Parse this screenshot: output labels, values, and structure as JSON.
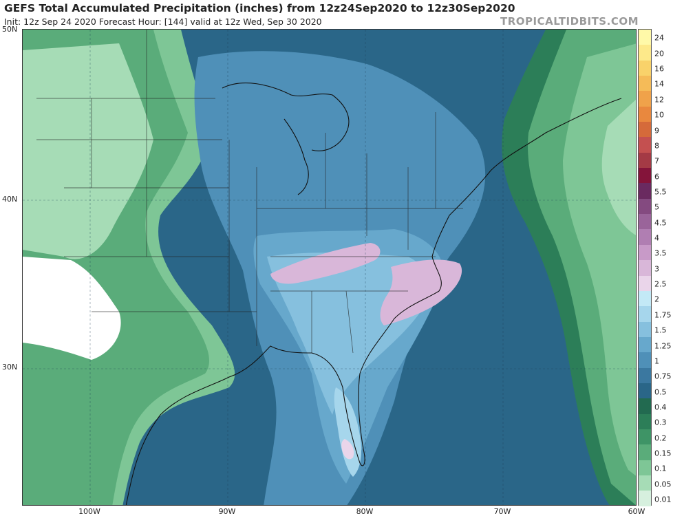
{
  "header": {
    "title": "GEFS Total Accumulated Precipitation (inches) from 12z24Sep2020 to 12z30Sep2020",
    "subtitle": "Init: 12z Sep 24 2020   Forecast Hour: [144]   valid at 12z Wed, Sep 30 2020",
    "brand": "TROPICALTIDBITS.COM"
  },
  "axes": {
    "lat_labels": [
      "50N",
      "40N",
      "30N"
    ],
    "lon_labels": [
      "100W",
      "90W",
      "80W",
      "70W",
      "60W"
    ]
  },
  "colorbar": {
    "labels": [
      "24",
      "20",
      "16",
      "14",
      "12",
      "10",
      "9",
      "8",
      "7",
      "6",
      "5.5",
      "5",
      "4.5",
      "4",
      "3.5",
      "3",
      "2.5",
      "2",
      "1.75",
      "1.5",
      "1.25",
      "1",
      "0.75",
      "0.5",
      "0.4",
      "0.3",
      "0.2",
      "0.15",
      "0.1",
      "0.05",
      "0.01"
    ],
    "colors": [
      "#fff9a8",
      "#fde98a",
      "#f9d26a",
      "#f5bb58",
      "#f0a24a",
      "#e9883e",
      "#d56a3a",
      "#c45050",
      "#a43a45",
      "#84143a",
      "#6a2a60",
      "#844a80",
      "#9a649a",
      "#b07eb2",
      "#c89ac8",
      "#d9b7d9",
      "#ead5ea",
      "#c3e9f6",
      "#a6d6ec",
      "#86c0de",
      "#67a8cc",
      "#4f90b8",
      "#3b78a0",
      "#2a6688",
      "#226a50",
      "#2c7e58",
      "#3e9466",
      "#5aac7a",
      "#7ec696",
      "#a6dcb6",
      "#d6f0de"
    ]
  }
}
